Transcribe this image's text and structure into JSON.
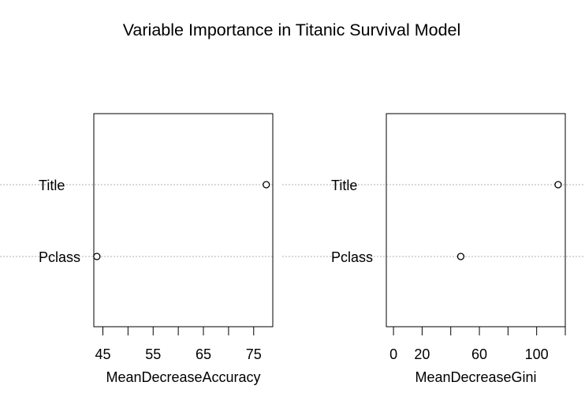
{
  "chart_data": {
    "type": "scatter",
    "title": "Variable Importance in Titanic Survival Model",
    "categories": [
      "Title",
      "Pclass"
    ],
    "panels": [
      {
        "xlabel": "MeanDecreaseAccuracy",
        "values": [
          77.5,
          43.8
        ],
        "xlim": [
          43.2,
          78.8
        ],
        "ticks": [
          45,
          50,
          55,
          60,
          65,
          70,
          75
        ],
        "tick_labels": [
          "45",
          "",
          "55",
          "",
          "65",
          "",
          "75"
        ]
      },
      {
        "xlabel": "MeanDecreaseGini",
        "values": [
          115,
          47
        ],
        "xlim": [
          -5,
          120
        ],
        "ticks": [
          0,
          20,
          40,
          60,
          80,
          100,
          120
        ],
        "tick_labels": [
          "0",
          "20",
          "",
          "60",
          "",
          "100",
          ""
        ]
      }
    ],
    "grid": "horizontal dotted lines at each category"
  }
}
